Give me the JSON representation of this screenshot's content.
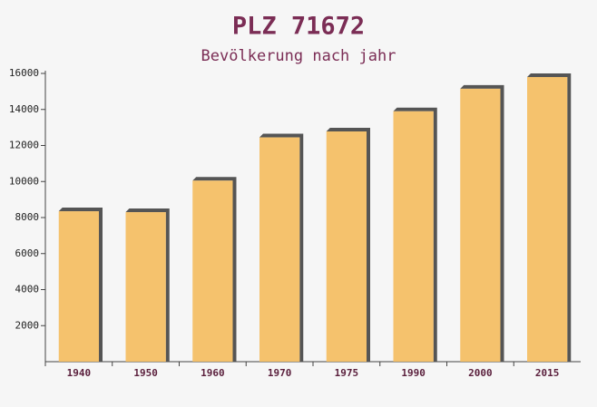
{
  "chart_data": {
    "type": "bar",
    "title": "PLZ 71672",
    "subtitle": "Bevölkerung nach jahr",
    "categories": [
      "1940",
      "1950",
      "1960",
      "1970",
      "1975",
      "1990",
      "2000",
      "2015"
    ],
    "values": [
      8350,
      8300,
      10050,
      12450,
      12780,
      13900,
      15150,
      15800
    ],
    "color": "#f5bd5e",
    "ylim": [
      0,
      16000
    ],
    "yticks": [
      2000,
      4000,
      6000,
      8000,
      10000,
      12000,
      14000,
      16000
    ],
    "grid": false
  }
}
